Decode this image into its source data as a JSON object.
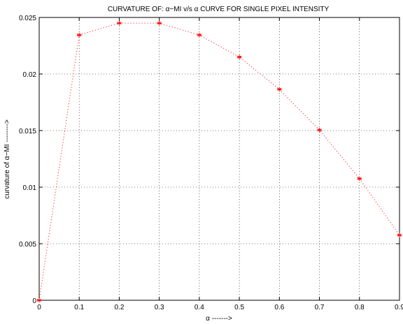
{
  "chart_data": {
    "type": "line",
    "title": "CURVATURE OF: α−MI v/s α  CURVE FOR SINGLE PIXEL INTENSITY",
    "xlabel": "α ------->",
    "ylabel": "curvature of α−MI -------->",
    "xlim": [
      0,
      0.9
    ],
    "ylim": [
      0,
      0.025
    ],
    "xticks": [
      "0",
      "0.1",
      "0.2",
      "0.3",
      "0.4",
      "0.5",
      "0.6",
      "0.7",
      "0.8",
      "0.9"
    ],
    "yticks": [
      "0",
      "0.005",
      "0.01",
      "0.015",
      "0.02",
      "0.025"
    ],
    "grid": true,
    "line_style": "dotted",
    "marker": "*",
    "color": "#ff0000",
    "series": [
      {
        "x": [
          0,
          0.1,
          0.2,
          0.3,
          0.4,
          0.5,
          0.6,
          0.7,
          0.8,
          0.9
        ],
        "y": [
          0.0,
          0.02345,
          0.0245,
          0.0245,
          0.02345,
          0.0215,
          0.01865,
          0.01505,
          0.01075,
          0.00575
        ]
      }
    ]
  }
}
